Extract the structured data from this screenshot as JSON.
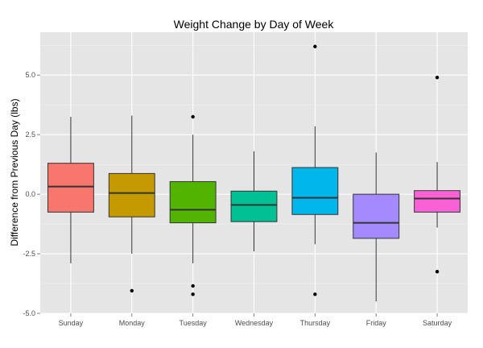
{
  "chart_data": {
    "type": "box",
    "title": "Weight Change by Day of Week",
    "xlabel": "",
    "ylabel": "Difference from Previous Day (lbs)",
    "ylim": [
      -5.0,
      6.8
    ],
    "yticks": [
      -5.0,
      -2.5,
      0.0,
      2.5,
      5.0
    ],
    "ytick_labels": [
      "-5.0",
      "-2.5",
      "0.0",
      "2.5",
      "5.0"
    ],
    "grid": true,
    "legend": "none",
    "categories": [
      "Sunday",
      "Monday",
      "Tuesday",
      "Wednesday",
      "Thursday",
      "Friday",
      "Saturday"
    ],
    "boxes": [
      {
        "category": "Sunday",
        "color": "#F8766D",
        "whisker_low": -2.9,
        "q1": -0.75,
        "median": 0.32,
        "q3": 1.3,
        "whisker_high": 3.25,
        "outliers": []
      },
      {
        "category": "Monday",
        "color": "#C49A00",
        "whisker_low": -2.5,
        "q1": -0.95,
        "median": 0.05,
        "q3": 0.87,
        "whisker_high": 3.3,
        "outliers": [
          -4.05
        ]
      },
      {
        "category": "Tuesday",
        "color": "#53B400",
        "whisker_low": -2.9,
        "q1": -1.2,
        "median": -0.65,
        "q3": 0.53,
        "whisker_high": 2.5,
        "outliers": [
          3.25,
          -3.85,
          -4.2
        ]
      },
      {
        "category": "Wednesday",
        "color": "#00C094",
        "whisker_low": -2.4,
        "q1": -1.15,
        "median": -0.45,
        "q3": 0.13,
        "whisker_high": 1.8,
        "outliers": []
      },
      {
        "category": "Thursday",
        "color": "#00B6EB",
        "whisker_low": -2.1,
        "q1": -0.85,
        "median": -0.15,
        "q3": 1.12,
        "whisker_high": 2.85,
        "outliers": [
          6.2,
          -4.2
        ]
      },
      {
        "category": "Friday",
        "color": "#A58AFF",
        "whisker_low": -4.5,
        "q1": -1.85,
        "median": -1.2,
        "q3": 0.0,
        "whisker_high": 1.75,
        "outliers": []
      },
      {
        "category": "Saturday",
        "color": "#FB61D7",
        "whisker_low": -1.4,
        "q1": -0.75,
        "median": -0.18,
        "q3": 0.15,
        "whisker_high": 1.35,
        "outliers": [
          4.9,
          -3.25
        ]
      }
    ],
    "colors": {
      "panel_background": "#E5E5E5",
      "grid_major": "#FFFFFF",
      "grid_minor": "#F2F2F2",
      "box_outline": "#333333",
      "outlier": "#000000"
    }
  }
}
